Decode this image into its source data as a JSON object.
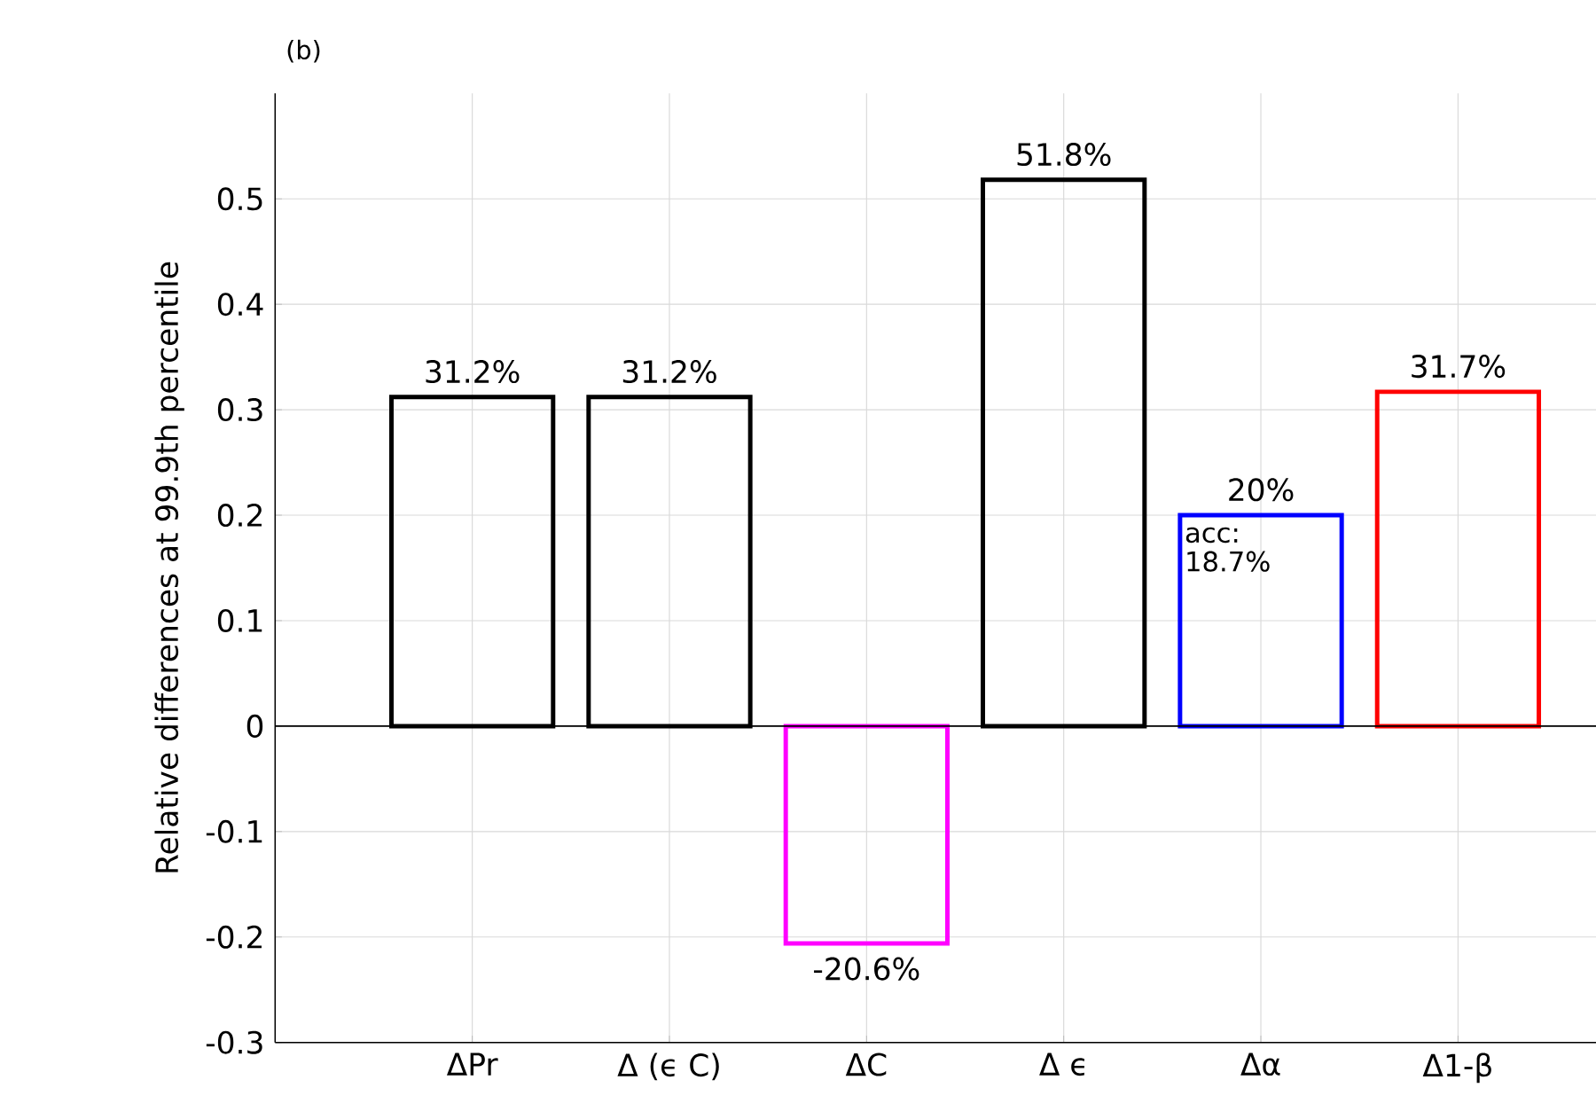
{
  "chart_data": {
    "type": "bar",
    "title": "(b)",
    "ylabel": "Relative differences at 99.9th percentile",
    "categories": [
      "ΔPr",
      "Δ (ϵ C)",
      "ΔC",
      "Δ ϵ",
      "Δα",
      "Δ1-β"
    ],
    "values": [
      0.312,
      0.312,
      -0.206,
      0.518,
      0.2,
      0.317
    ],
    "colors": [
      "#000000",
      "#000000",
      "#ff00ff",
      "#000000",
      "#0000ff",
      "#ff0000"
    ],
    "value_labels": [
      "31.2%",
      "31.2%",
      "-20.6%",
      "51.8%",
      "20%",
      "31.7%"
    ],
    "annotations": [
      "acc: 18.7%"
    ],
    "ylim": [
      -0.3,
      0.6
    ],
    "yticks": [
      -0.3,
      -0.2,
      -0.1,
      0,
      0.1,
      0.2,
      0.3,
      0.4,
      0.5
    ],
    "ref_lines": [
      {
        "axis": "y",
        "value": 0,
        "color": "#000000"
      }
    ],
    "grid": true
  }
}
